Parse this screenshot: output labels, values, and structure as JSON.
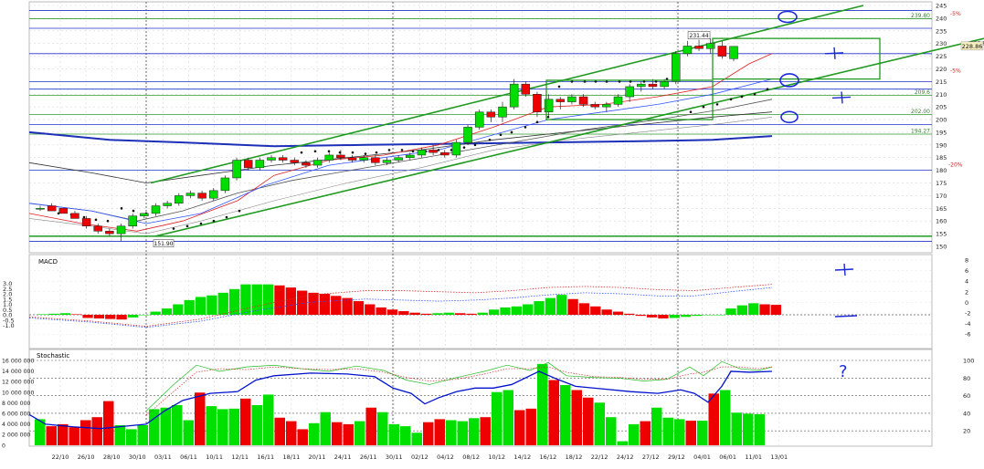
{
  "chart_data": [
    {
      "panel": "price",
      "type": "candlestick",
      "ylim": [
        150,
        245
      ],
      "yticks": [
        150,
        155,
        160,
        165,
        170,
        175,
        180,
        185,
        190,
        195,
        200,
        205,
        210,
        215,
        220,
        225,
        230,
        235,
        240,
        245
      ],
      "x_labels": [
        "22/10",
        "26/10",
        "28/10",
        "30/10",
        "03/11",
        "06/11",
        "10/11",
        "12/11",
        "16/11",
        "18/11",
        "20/11",
        "24/11",
        "26/11",
        "30/11",
        "02/12",
        "04/12",
        "08/12",
        "10/12",
        "14/12",
        "16/12",
        "18/12",
        "22/12",
        "24/12",
        "27/12",
        "29/12",
        "04/01",
        "06/01",
        "11/01",
        "13/01"
      ],
      "candles": [
        [
          165,
          166,
          164,
          165
        ],
        [
          166,
          167,
          164,
          164
        ],
        [
          165,
          165,
          163,
          163
        ],
        [
          163,
          164,
          161,
          161
        ],
        [
          161,
          162,
          157,
          158
        ],
        [
          158,
          159,
          155,
          156
        ],
        [
          156,
          157,
          154,
          155
        ],
        [
          155,
          159,
          152,
          158
        ],
        [
          158,
          163,
          157,
          162
        ],
        [
          162,
          163,
          161,
          163
        ],
        [
          163,
          167,
          162,
          166
        ],
        [
          166,
          168,
          165,
          167
        ],
        [
          167,
          171,
          166,
          170
        ],
        [
          170,
          172,
          169,
          171
        ],
        [
          171,
          172,
          168,
          169
        ],
        [
          169,
          173,
          168,
          172
        ],
        [
          172,
          178,
          171,
          177
        ],
        [
          177,
          185,
          176,
          184
        ],
        [
          184,
          185,
          180,
          181
        ],
        [
          181,
          185,
          180,
          184
        ],
        [
          184,
          186,
          183,
          185
        ],
        [
          185,
          186,
          183,
          184
        ],
        [
          184,
          185,
          182,
          183
        ],
        [
          183,
          184,
          181,
          182
        ],
        [
          182,
          185,
          181,
          184
        ],
        [
          184,
          187,
          183,
          186
        ],
        [
          186,
          188,
          184,
          185
        ],
        [
          185,
          186,
          183,
          184
        ],
        [
          184,
          186,
          183,
          185
        ],
        [
          185,
          186,
          182,
          183
        ],
        [
          183,
          185,
          182,
          184
        ],
        [
          184,
          186,
          183,
          185
        ],
        [
          185,
          187,
          184,
          186
        ],
        [
          186,
          189,
          185,
          188
        ],
        [
          188,
          190,
          186,
          187
        ],
        [
          187,
          188,
          185,
          186
        ],
        [
          186,
          192,
          185,
          191
        ],
        [
          191,
          198,
          190,
          197
        ],
        [
          197,
          204,
          196,
          203
        ],
        [
          203,
          204,
          199,
          201
        ],
        [
          201,
          207,
          199,
          205
        ],
        [
          205,
          216,
          204,
          214
        ],
        [
          214,
          215,
          209,
          210
        ],
        [
          210,
          211,
          201,
          203
        ],
        [
          203,
          210,
          201,
          208
        ],
        [
          208,
          209,
          204,
          207
        ],
        [
          207,
          210,
          206,
          209
        ],
        [
          209,
          210,
          205,
          206
        ],
        [
          206,
          207,
          204,
          205
        ],
        [
          205,
          207,
          203,
          206
        ],
        [
          206,
          210,
          205,
          209
        ],
        [
          209,
          214,
          207,
          213
        ],
        [
          213,
          215,
          211,
          214
        ],
        [
          214,
          216,
          212,
          213
        ],
        [
          213,
          216,
          212,
          215
        ],
        [
          215,
          227,
          214,
          226
        ],
        [
          226,
          231,
          225,
          229
        ],
        [
          229,
          231.44,
          227,
          228
        ],
        [
          228,
          232,
          226,
          230
        ],
        [
          229,
          231,
          224,
          225
        ],
        [
          224,
          229,
          223,
          228.86
        ]
      ],
      "levels": [
        {
          "value": 239.8,
          "label": "239.80",
          "color": "#2e8b2e"
        },
        {
          "value": 228.86,
          "label": "228.86",
          "color": "#111111"
        },
        {
          "value": 209.6,
          "label": "209.6",
          "color": "#2e8b2e"
        },
        {
          "value": 202.0,
          "label": "202.00",
          "color": "#2e8b2e"
        },
        {
          "value": 194.27,
          "label": "194.27",
          "color": "#2e8b2e"
        }
      ],
      "annotations": [
        "231.44",
        "151.90",
        "-5%",
        "-5%",
        "-20%"
      ],
      "price_labels": {
        "high": "231.44",
        "low": "151.90",
        "last": "228.86"
      },
      "pct_labels": [
        "-5%",
        "-5%",
        "-20%"
      ]
    },
    {
      "panel": "macd",
      "type": "bar",
      "title": "MACD",
      "ylim_left": [
        -1.0,
        3.0
      ],
      "yticks_left": [
        "3.0",
        "2.5",
        "2.0",
        "1.5",
        "1.0",
        "0.5",
        "0.0",
        "-0.5",
        "-1.0"
      ],
      "yticks_right": [
        "8",
        "6",
        "4",
        "2",
        "0",
        "-2",
        "-4",
        "-6"
      ],
      "values": [
        0.05,
        0.1,
        0.15,
        0.05,
        -0.3,
        -0.35,
        -0.4,
        -0.45,
        -0.25,
        0.0,
        0.3,
        0.6,
        1.0,
        1.4,
        1.7,
        1.85,
        2.1,
        2.45,
        2.9,
        2.9,
        2.9,
        2.8,
        2.6,
        2.3,
        2.1,
        2.0,
        1.8,
        1.6,
        1.3,
        1.0,
        0.7,
        0.5,
        0.35,
        0.2,
        0.1,
        0.15,
        0.2,
        0.15,
        0.1,
        0.2,
        0.5,
        0.7,
        0.8,
        1.0,
        1.3,
        1.6,
        1.9,
        1.5,
        1.1,
        0.8,
        0.5,
        0.3,
        0.1,
        -0.1,
        -0.25,
        -0.35,
        -0.3,
        -0.2,
        -0.1,
        0.0,
        0.0,
        0.6,
        0.9,
        1.1,
        1.0,
        0.95
      ]
    },
    {
      "panel": "stochastic",
      "type": "bar",
      "title": "Stochastic",
      "yticks_left": [
        "16 000 000",
        "14 000 000",
        "12 000 000",
        "10 000 000",
        "8 000 000",
        "6 000 000",
        "4 000 000",
        "2 000 000",
        "0"
      ],
      "yticks_right": [
        "100",
        "80",
        "60",
        "40",
        "20"
      ],
      "volume": [
        5.2,
        3.8,
        4.2,
        3.6,
        5.0,
        5.6,
        8.8,
        4.0,
        3.2,
        4.0,
        7.2,
        7.5,
        8.0,
        5.0,
        10.5,
        7.8,
        7.2,
        7.3,
        9.3,
        8.0,
        10.1,
        5.5,
        4.8,
        3.2,
        4.4,
        6.6,
        4.6,
        4.2,
        4.8,
        7.5,
        6.6,
        4.2,
        3.8,
        2.5,
        4.6,
        5.2,
        5.0,
        4.8,
        5.4,
        5.6,
        10.6,
        11.0,
        7.0,
        7.3,
        16.2,
        13.0,
        12.0,
        11.0,
        9.5,
        8.5,
        5.6,
        0.8,
        4.2,
        4.8,
        7.5,
        5.5,
        5.2,
        4.9,
        4.9,
        10.3,
        11.0,
        6.5,
        6.3,
        6.2
      ]
    }
  ],
  "annotations": {
    "ellipses": 3,
    "plus_marks": 3,
    "dash_mark": 1,
    "question_mark": "?"
  }
}
